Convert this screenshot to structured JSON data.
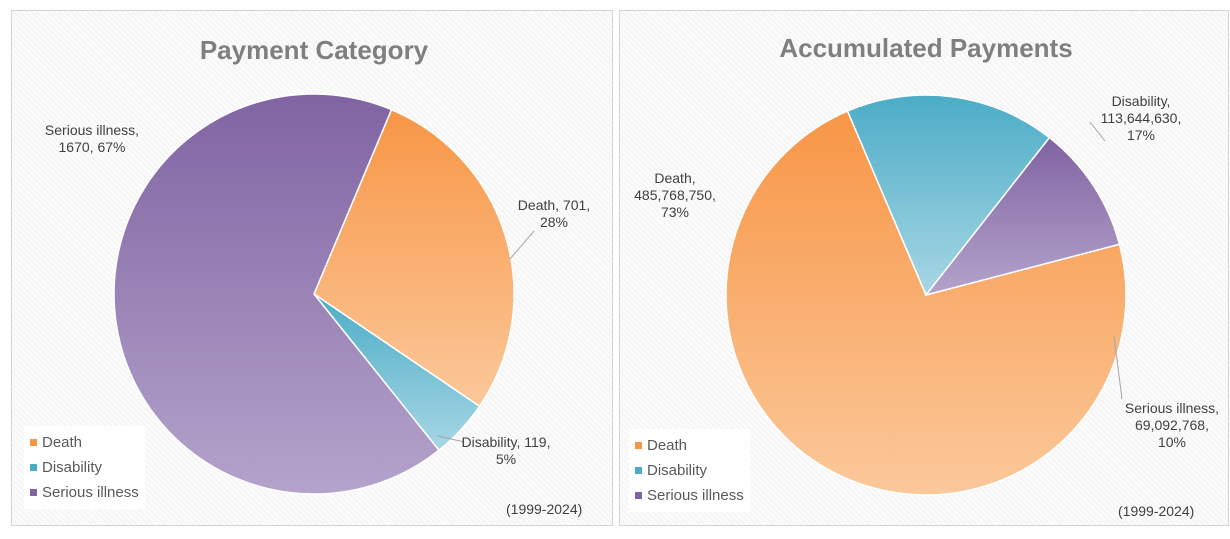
{
  "colors": {
    "death": [
      "#f79646",
      "#fbc89a"
    ],
    "disability": [
      "#4bacc6",
      "#a8d7e5"
    ],
    "serious_illness": [
      "#8064a2",
      "#b4a3cb"
    ],
    "title": "#7f7f7f",
    "label": "#404040"
  },
  "chart_data": [
    {
      "type": "pie",
      "title": "Payment Category",
      "categories": [
        "Death",
        "Disability",
        "Serious illness"
      ],
      "values": [
        701,
        119,
        1670
      ],
      "percent_labels": [
        "28%",
        "5%",
        "67%"
      ],
      "data_labels": [
        [
          "Death, 701,",
          "28%"
        ],
        [
          "Disability, 119,",
          "5%"
        ],
        [
          "Serious illness,",
          "1670, 67%"
        ]
      ],
      "legend": [
        "Death",
        "Disability",
        "Serious illness"
      ],
      "legend_position": "bottom-left",
      "note": "(1999-2024)"
    },
    {
      "type": "pie",
      "title": "Accumulated Payments",
      "categories": [
        "Death",
        "Disability",
        "Serious illness"
      ],
      "values": [
        485768750,
        113644630,
        69092768
      ],
      "percent_labels": [
        "73%",
        "17%",
        "10%"
      ],
      "data_labels": [
        [
          "Death,",
          "485,768,750,",
          "73%"
        ],
        [
          "Disability,",
          "113,644,630,",
          "17%"
        ],
        [
          "Serious illness,",
          "69,092,768,",
          "10%"
        ]
      ],
      "legend": [
        "Death",
        "Disability",
        "Serious illness"
      ],
      "legend_position": "bottom-left",
      "note": "(1999-2024)"
    }
  ]
}
